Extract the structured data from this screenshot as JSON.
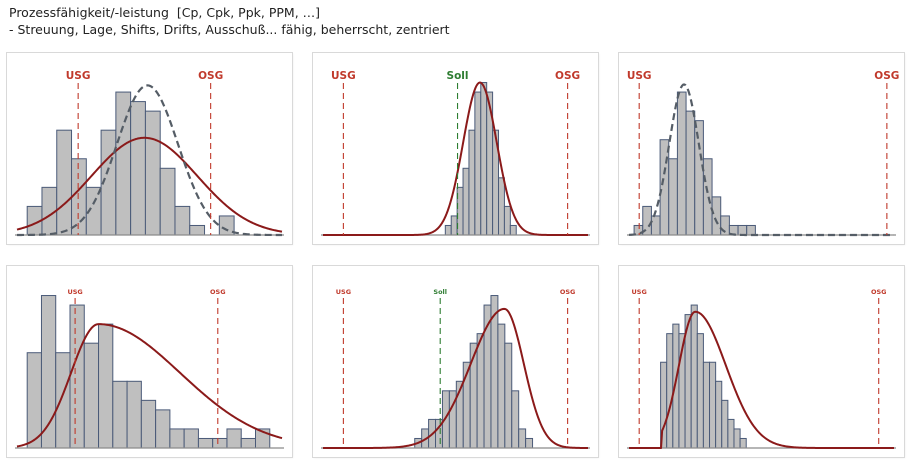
{
  "header": {
    "title": "Prozessfähigkeit/-leistung  [Cp, Cpk, Ppk, PPM, …]",
    "subtitle": "- Streuung, Lage, Shifts, Drifts, Ausschuß... fähig, beherrscht, zentriert"
  },
  "colors": {
    "bar_fill": "#bfbfbf",
    "bar_stroke": "#4a5a78",
    "fit_curve": "#8b1a1a",
    "dashed_curve": "#555d66",
    "limit_line": "#c0392b",
    "target_line": "#2e7d32",
    "baseline": "#8a8a8a"
  },
  "chart_data": [
    {
      "type": "histogram",
      "x_range": [
        0,
        26
      ],
      "y_range": [
        0,
        17
      ],
      "bins_start": 1,
      "bin_width": 1.45,
      "counts": [
        3,
        5,
        11,
        8,
        5,
        11,
        15,
        14,
        13,
        7,
        3,
        1,
        0,
        2
      ],
      "limits": [
        {
          "label": "USG",
          "x": 6
        },
        {
          "label": "OSG",
          "x": 19
        }
      ],
      "curves": [
        {
          "style": "solid",
          "mu": 12.5,
          "sigma": 5.2,
          "peak": 10.2
        },
        {
          "style": "dashed",
          "mu": 12.8,
          "sigma": 3.0,
          "peak": 15.7
        }
      ],
      "label_size": "large"
    },
    {
      "type": "histogram",
      "x_range": [
        0,
        26
      ],
      "y_range": [
        0,
        17
      ],
      "bins_start": 12,
      "bin_width": 0.58,
      "counts": [
        1,
        2,
        5,
        7,
        11,
        15,
        16,
        15,
        11,
        6,
        3,
        1
      ],
      "limits": [
        {
          "label": "USG",
          "x": 2
        },
        {
          "label": "OSG",
          "x": 24
        }
      ],
      "target": {
        "label": "Soll",
        "x": 13.2
      },
      "curves": [
        {
          "style": "solid",
          "mu": 15.4,
          "sigma": 1.65,
          "peak": 16.0
        }
      ],
      "label_size": "large"
    },
    {
      "type": "histogram",
      "x_range": [
        0,
        26
      ],
      "y_range": [
        0,
        17
      ],
      "bins_start": 0.5,
      "bin_width": 0.85,
      "counts": [
        1,
        3,
        2,
        10,
        8,
        15,
        13,
        12,
        8,
        4,
        2,
        1,
        1,
        1
      ],
      "limits": [
        {
          "label": "USG",
          "x": 1
        },
        {
          "label": "OSG",
          "x": 25.3
        }
      ],
      "curves": [
        {
          "style": "dashed",
          "mu": 5.4,
          "sigma": 1.45,
          "peak": 15.8
        }
      ],
      "label_size": "large"
    },
    {
      "type": "histogram",
      "x_range": [
        0,
        26
      ],
      "y_range": [
        0,
        17
      ],
      "bins_start": 1,
      "bin_width": 1.4,
      "counts": [
        10,
        16,
        10,
        15,
        11,
        13,
        7,
        7,
        5,
        4,
        2,
        2,
        1,
        1,
        2,
        1,
        2
      ],
      "limits": [
        {
          "label": "USG",
          "x": 5.7
        },
        {
          "label": "OSG",
          "x": 19.7
        }
      ],
      "curves": [
        {
          "style": "solid",
          "mu": 8.0,
          "sigma_left": 2.7,
          "sigma_right": 8.0,
          "peak": 13.0
        }
      ],
      "label_size": "small"
    },
    {
      "type": "histogram",
      "x_range": [
        0,
        26
      ],
      "y_range": [
        0,
        17
      ],
      "bins_start": 9.0,
      "bin_width": 0.68,
      "counts": [
        1,
        2,
        3,
        3,
        6,
        6,
        7,
        9,
        11,
        12,
        15,
        16,
        13,
        11,
        6,
        2,
        1
      ],
      "limits": [
        {
          "label": "USG",
          "x": 2
        },
        {
          "label": "OSG",
          "x": 24
        }
      ],
      "target": {
        "label": "Soll",
        "x": 11.5
      },
      "curves": [
        {
          "style": "solid",
          "mu": 17.8,
          "sigma_left": 3.3,
          "sigma_right": 1.9,
          "peak": 14.6
        }
      ],
      "label_size": "small"
    },
    {
      "type": "histogram",
      "x_range": [
        0,
        26
      ],
      "y_range": [
        0,
        17
      ],
      "bins_start": 3.1,
      "bin_width": 0.6,
      "counts": [
        9,
        12,
        13,
        12,
        14,
        15,
        12,
        9,
        9,
        7,
        5,
        3,
        2,
        1
      ],
      "limits": [
        {
          "label": "USG",
          "x": 1
        },
        {
          "label": "OSG",
          "x": 24.5
        }
      ],
      "curves": [
        {
          "style": "solid",
          "mu": 6.5,
          "sigma_left": 1.6,
          "sigma_right": 3.0,
          "peak": 14.3,
          "start": 3.2
        }
      ],
      "label_size": "small"
    }
  ]
}
